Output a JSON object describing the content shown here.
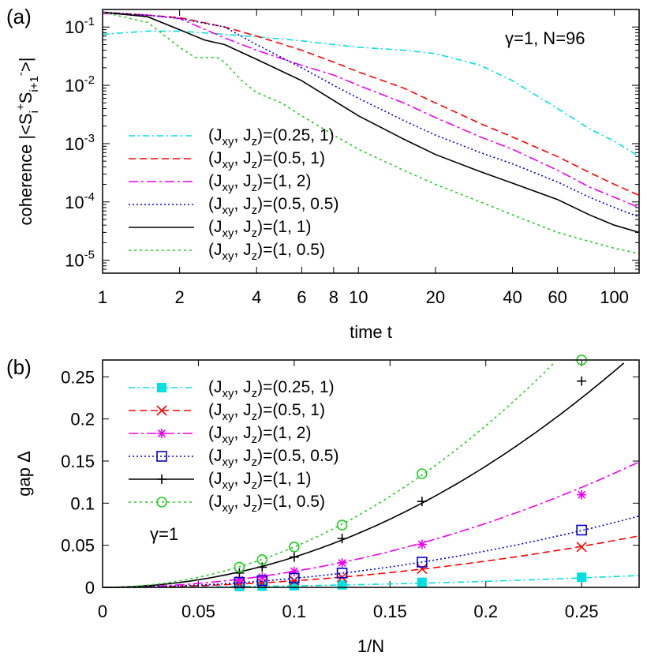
{
  "chart_data": [
    {
      "type": "line",
      "panel_label": "(a)",
      "annotation": "γ=1, N=96",
      "xlabel": "time t",
      "ylabel": "coherence |<S_i^+ S_{i+1}^->|",
      "xscale": "log",
      "yscale": "log",
      "xlim": [
        1,
        125
      ],
      "ylim": [
        6e-06,
        0.2
      ],
      "x_ticks": [
        1,
        2,
        4,
        6,
        8,
        10,
        20,
        40,
        60,
        100
      ],
      "x_tick_labels": [
        "1",
        "2",
        "4",
        "6",
        "8",
        "10",
        "20",
        "40",
        "60",
        "100"
      ],
      "y_ticks": [
        1e-05,
        0.0001,
        0.001,
        0.01,
        0.1
      ],
      "y_tick_labels": [
        {
          "base": "10",
          "exp": "-5"
        },
        {
          "base": "10",
          "exp": "-4"
        },
        {
          "base": "10",
          "exp": "-3"
        },
        {
          "base": "10",
          "exp": "-2"
        },
        {
          "base": "10",
          "exp": "-1"
        }
      ],
      "legend_position": "bottom-left",
      "series": [
        {
          "name": "(Jxy, Jz)=(0.25, 1)",
          "label_vals": "=(0.25, 1)",
          "color": "#00e0e0",
          "dash": "8,4,2,4",
          "x": [
            1,
            1.5,
            2,
            3,
            4,
            6,
            8,
            10,
            15,
            20,
            30,
            40,
            60,
            80,
            100,
            125
          ],
          "y": [
            0.075,
            0.085,
            0.085,
            0.075,
            0.068,
            0.058,
            0.05,
            0.045,
            0.04,
            0.035,
            0.022,
            0.012,
            0.004,
            0.0018,
            0.0011,
            0.0006
          ]
        },
        {
          "name": "(Jxy, Jz)=(0.5, 1)",
          "label_vals": "=(0.5, 1)",
          "color": "#ff0000",
          "dash": "9,5",
          "x": [
            1,
            1.5,
            2,
            3,
            4,
            6,
            8,
            10,
            15,
            20,
            30,
            40,
            60,
            80,
            100,
            125
          ],
          "y": [
            0.18,
            0.16,
            0.145,
            0.1,
            0.07,
            0.04,
            0.025,
            0.017,
            0.009,
            0.005,
            0.0022,
            0.0013,
            0.0006,
            0.00032,
            0.0002,
            0.00013
          ]
        },
        {
          "name": "(Jxy, Jz)=(1, 2)",
          "label_vals": "=(1, 2)",
          "color": "#ee00ee",
          "dash": "12,4,3,4",
          "x": [
            1,
            1.5,
            2,
            3,
            4,
            6,
            8,
            10,
            15,
            20,
            30,
            40,
            60,
            80,
            100,
            125
          ],
          "y": [
            0.17,
            0.16,
            0.14,
            0.065,
            0.04,
            0.022,
            0.015,
            0.01,
            0.005,
            0.0028,
            0.0013,
            0.0008,
            0.00035,
            0.00018,
            0.00012,
            8e-05
          ]
        },
        {
          "name": "(Jxy, Jz)=(0.5, 0.5)",
          "label_vals": "=(0.5, 0.5)",
          "color": "#0000cc",
          "dash": "2,3",
          "x": [
            1,
            1.5,
            2,
            3,
            4,
            6,
            8,
            10,
            15,
            20,
            30,
            40,
            60,
            80,
            100,
            125
          ],
          "y": [
            0.18,
            0.16,
            0.14,
            0.1,
            0.05,
            0.02,
            0.01,
            0.006,
            0.0025,
            0.0014,
            0.0007,
            0.00045,
            0.00022,
            0.00012,
            8e-05,
            5.5e-05
          ]
        },
        {
          "name": "(Jxy, Jz)=(1, 1)",
          "label_vals": "=(1, 1)",
          "color": "#000000",
          "dash": "",
          "x": [
            1,
            1.5,
            2,
            2.5,
            3,
            4,
            6,
            8,
            10,
            15,
            20,
            30,
            40,
            60,
            80,
            100,
            125
          ],
          "y": [
            0.18,
            0.15,
            0.09,
            0.06,
            0.05,
            0.028,
            0.012,
            0.0055,
            0.003,
            0.0012,
            0.00065,
            0.00033,
            0.00021,
            0.00011,
            6e-05,
            4e-05,
            3e-05
          ]
        },
        {
          "name": "(Jxy, Jz)=(1, 0.5)",
          "label_vals": "=(1, 0.5)",
          "color": "#22cc22",
          "dash": "3,4",
          "x": [
            1,
            1.5,
            2,
            2.3,
            2.8,
            3,
            3.5,
            4,
            5,
            6,
            8,
            10,
            15,
            20,
            30,
            40,
            60,
            80,
            100,
            125
          ],
          "y": [
            0.18,
            0.12,
            0.045,
            0.03,
            0.03,
            0.025,
            0.012,
            0.0075,
            0.005,
            0.003,
            0.0014,
            0.0008,
            0.00035,
            0.0002,
            0.0001,
            6e-05,
            3e-05,
            2.1e-05,
            1.6e-05,
            1.3e-05
          ]
        }
      ]
    },
    {
      "type": "line",
      "panel_label": "(b)",
      "annotation": "γ=1",
      "xlabel": "1/N",
      "ylabel": "gap Δ",
      "xlim": [
        0,
        0.28
      ],
      "ylim": [
        0,
        0.27
      ],
      "x_ticks": [
        0,
        0.05,
        0.1,
        0.15,
        0.2,
        0.25
      ],
      "x_tick_labels": [
        "0",
        "0.05",
        "0.1",
        "0.15",
        "0.2",
        "0.25"
      ],
      "y_ticks": [
        0,
        0.05,
        0.1,
        0.15,
        0.2,
        0.25
      ],
      "y_tick_labels": [
        "0",
        "0.05",
        "0.1",
        "0.15",
        "0.2",
        "0.25"
      ],
      "legend_position": "top-left",
      "series": [
        {
          "name": "(Jxy, Jz)=(0.25, 1)",
          "label_vals": "=(0.25, 1)",
          "color": "#00e0e0",
          "dash": "8,4,2,4",
          "marker": "square-filled",
          "points_x": [
            0.0714,
            0.0833,
            0.1,
            0.125,
            0.1667,
            0.25
          ],
          "points_y": [
            0.001,
            0.0015,
            0.002,
            0.003,
            0.006,
            0.012
          ],
          "fit_coef": 0.18
        },
        {
          "name": "(Jxy, Jz)=(0.5, 1)",
          "label_vals": "=(0.5, 1)",
          "color": "#ff0000",
          "dash": "9,5",
          "marker": "x",
          "points_x": [
            0.0714,
            0.0833,
            0.1,
            0.125,
            0.1667,
            0.25
          ],
          "points_y": [
            0.004,
            0.005,
            0.008,
            0.012,
            0.022,
            0.048
          ],
          "fit_coef": 0.78
        },
        {
          "name": "(Jxy, Jz)=(1, 2)",
          "label_vals": "=(1, 2)",
          "color": "#ee00ee",
          "dash": "12,4,3,4",
          "marker": "star",
          "points_x": [
            0.0714,
            0.0833,
            0.1,
            0.125,
            0.1667,
            0.25
          ],
          "points_y": [
            0.009,
            0.012,
            0.019,
            0.029,
            0.051,
            0.11
          ],
          "fit_coef": 1.9
        },
        {
          "name": "(Jxy, Jz)=(0.5, 0.5)",
          "label_vals": "=(0.5, 0.5)",
          "color": "#0000cc",
          "dash": "2,3",
          "marker": "square-open",
          "points_x": [
            0.0714,
            0.0833,
            0.1,
            0.125,
            0.1667,
            0.25
          ],
          "points_y": [
            0.006,
            0.008,
            0.011,
            0.017,
            0.03,
            0.068
          ],
          "fit_coef": 1.08
        },
        {
          "name": "(Jxy, Jz)=(1, 1)",
          "label_vals": "=(1, 1)",
          "color": "#000000",
          "dash": "",
          "marker": "plus",
          "points_x": [
            0.0714,
            0.0833,
            0.1,
            0.125,
            0.1667,
            0.25
          ],
          "points_y": [
            0.017,
            0.024,
            0.036,
            0.058,
            0.102,
            0.245
          ],
          "fit_coef": 3.6
        },
        {
          "name": "(Jxy, Jz)=(1, 0.5)",
          "label_vals": "=(1, 0.5)",
          "color": "#22cc22",
          "dash": "3,4",
          "marker": "circle-open",
          "points_x": [
            0.0714,
            0.0833,
            0.1,
            0.125,
            0.1667,
            0.25
          ],
          "points_y": [
            0.024,
            0.033,
            0.048,
            0.074,
            0.135,
            0.27
          ],
          "fit_coef": 4.8
        }
      ]
    }
  ]
}
